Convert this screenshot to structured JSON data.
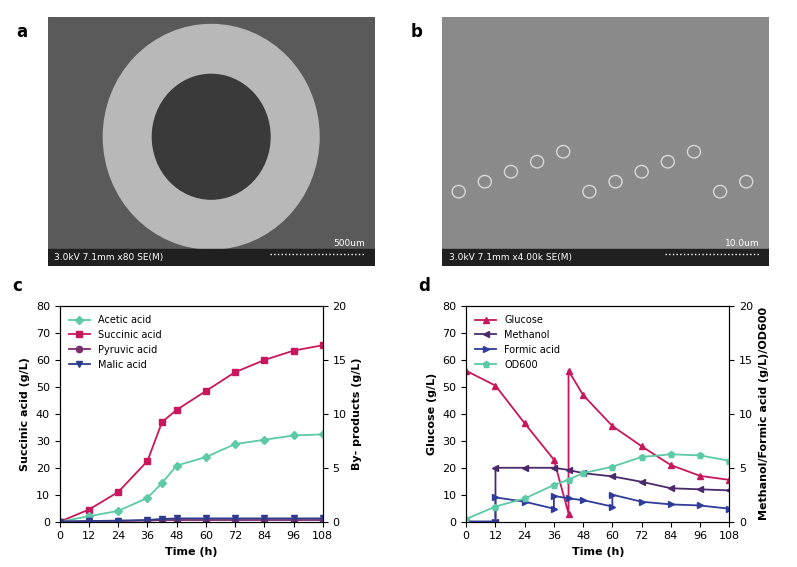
{
  "images": [
    {
      "panel": "a",
      "info": "3.0kV 7.1mm x80 SE(M)",
      "scale_bar": "500um"
    },
    {
      "panel": "b",
      "info": "3.0kV 7.1mm x4.00k SE(M)",
      "scale_bar": "10.0um"
    }
  ],
  "chart_data": [
    {
      "type": "line",
      "panel": "c",
      "x_label": "Time (h)",
      "y_label": "Succinic acid (g/L)",
      "y2_label": "By- products (g/L)",
      "x": [
        0,
        12,
        24,
        36,
        42,
        48,
        60,
        72,
        84,
        96,
        108
      ],
      "xlim": [
        0,
        108
      ],
      "xticks": [
        0,
        12,
        24,
        36,
        48,
        60,
        72,
        84,
        96,
        108
      ],
      "ylim": [
        0,
        80
      ],
      "yticks": [
        0,
        10,
        20,
        30,
        40,
        50,
        60,
        70,
        80
      ],
      "y2lim": [
        0,
        20
      ],
      "y2ticks": [
        0,
        5,
        10,
        15,
        20
      ],
      "legend": "upper left",
      "series": [
        {
          "name": "Acetic acid",
          "color": "#5cc9a7",
          "marker": "diamond",
          "axis": "y2",
          "values": [
            0,
            0.5,
            1.0,
            2.2,
            3.6,
            5.2,
            6.0,
            7.2,
            7.6,
            8.0,
            8.1
          ]
        },
        {
          "name": "Succinic acid",
          "color": "#c8175d",
          "marker": "square",
          "values": [
            0,
            4.5,
            11,
            22.5,
            37,
            41.5,
            48.5,
            55.5,
            60,
            63.5,
            65.5
          ]
        },
        {
          "name": "Pyruvic acid",
          "color": "#7b2d6e",
          "marker": "circle",
          "axis": "y2",
          "values": [
            0,
            0.05,
            0.05,
            0.1,
            0.15,
            0.15,
            0.15,
            0.15,
            0.15,
            0.15,
            0.15
          ]
        },
        {
          "name": "Malic acid",
          "color": "#2e3a8c",
          "marker": "triangle_down",
          "axis": "y2",
          "values": [
            0,
            0.05,
            0.1,
            0.15,
            0.25,
            0.3,
            0.3,
            0.3,
            0.3,
            0.3,
            0.3
          ]
        }
      ]
    },
    {
      "type": "line",
      "panel": "d",
      "x_label": "Time (h)",
      "y_label": "Glucose (g/L)",
      "y2_label": "Methanol/Formic acid (g/L)/OD600",
      "xlim": [
        0,
        108
      ],
      "xticks": [
        0,
        12,
        24,
        36,
        48,
        60,
        72,
        84,
        96,
        108
      ],
      "ylim": [
        0,
        80
      ],
      "yticks": [
        0,
        10,
        20,
        30,
        40,
        50,
        60,
        70,
        80
      ],
      "y2lim": [
        0,
        20
      ],
      "y2ticks": [
        0,
        5,
        10,
        15,
        20
      ],
      "legend": "upper left",
      "series": [
        {
          "name": "Glucose",
          "color": "#c8175d",
          "marker": "triangle_up",
          "x": [
            0,
            12,
            24,
            36,
            42,
            42,
            48,
            60,
            72,
            84,
            96,
            108
          ],
          "values": [
            56,
            50.5,
            36.5,
            23,
            3,
            56,
            47,
            35.5,
            28,
            21,
            17,
            15.5
          ]
        },
        {
          "name": "Methanol",
          "color": "#4b2a6b",
          "marker": "triangle_left",
          "axis": "y2",
          "x": [
            0,
            12,
            12,
            24,
            36,
            42,
            48,
            60,
            72,
            84,
            96,
            108
          ],
          "values": [
            0,
            0,
            5.0,
            5.0,
            5.0,
            4.8,
            4.5,
            4.2,
            3.7,
            3.1,
            3.0,
            2.9
          ]
        },
        {
          "name": "Formic acid",
          "color": "#2f3c9a",
          "marker": "triangle_right",
          "axis": "y2",
          "x": [
            0,
            12,
            12,
            24,
            36,
            36,
            42,
            48,
            60,
            60,
            72,
            84,
            96,
            108
          ],
          "values": [
            0,
            0,
            2.25,
            1.85,
            1.2,
            2.4,
            2.15,
            2.0,
            1.4,
            2.5,
            1.85,
            1.6,
            1.5,
            1.2
          ]
        },
        {
          "name": "OD600",
          "color": "#5cc9a7",
          "marker": "pentagon",
          "axis": "y2",
          "x": [
            0,
            12,
            24,
            36,
            42,
            48,
            60,
            72,
            84,
            96,
            108
          ],
          "values": [
            0.25,
            1.4,
            2.15,
            3.4,
            3.9,
            4.5,
            5.1,
            6.0,
            6.25,
            6.15,
            5.65
          ]
        }
      ]
    }
  ]
}
